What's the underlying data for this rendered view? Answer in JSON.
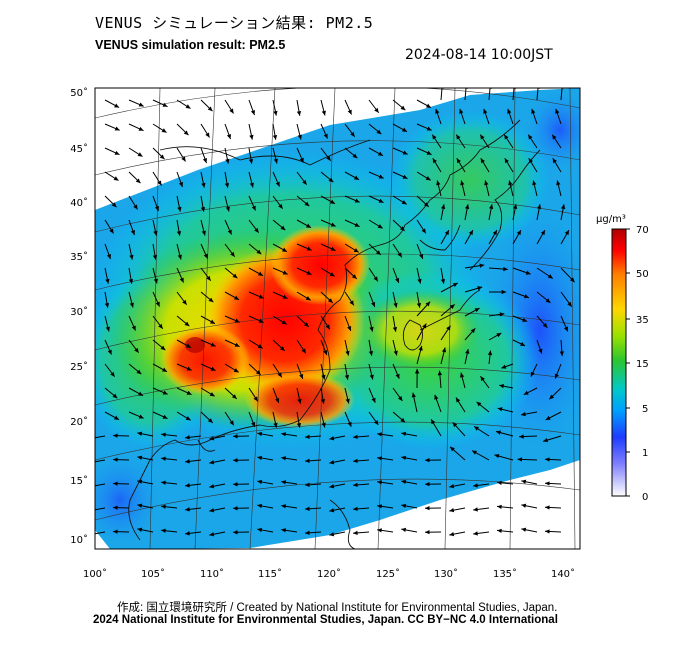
{
  "header": {
    "title_jp": "VENUS シミュレーション結果: PM2.5",
    "title_en": "VENUS simulation result: PM2.5",
    "timestamp": "2024-08-14 10:00JST"
  },
  "map": {
    "lon_range": [
      100,
      140
    ],
    "lat_range": [
      10,
      50
    ],
    "lon_ticks": [
      "100˚",
      "105˚",
      "110˚",
      "115˚",
      "120˚",
      "125˚",
      "130˚",
      "135˚",
      "140˚"
    ],
    "lat_ticks": [
      "50˚",
      "45˚",
      "40˚",
      "35˚",
      "30˚",
      "25˚",
      "20˚",
      "15˚",
      "10˚"
    ]
  },
  "colorbar": {
    "unit": "μg/m³",
    "levels": [
      "70",
      "50",
      "35",
      "15",
      "5",
      "1",
      "0"
    ],
    "colors": [
      "#ff0000",
      "#ff7f00",
      "#ffd700",
      "#2ec62e",
      "#00c8ff",
      "#1e3cff",
      "#ffffff"
    ]
  },
  "footer": {
    "credit_line1": "作成: 国立環境研究所 / Created by National Institute for Environmental Studies, Japan.",
    "credit_line2": "2024 National Institute for Environmental Studies, Japan. CC BY−NC 4.0 International"
  }
}
